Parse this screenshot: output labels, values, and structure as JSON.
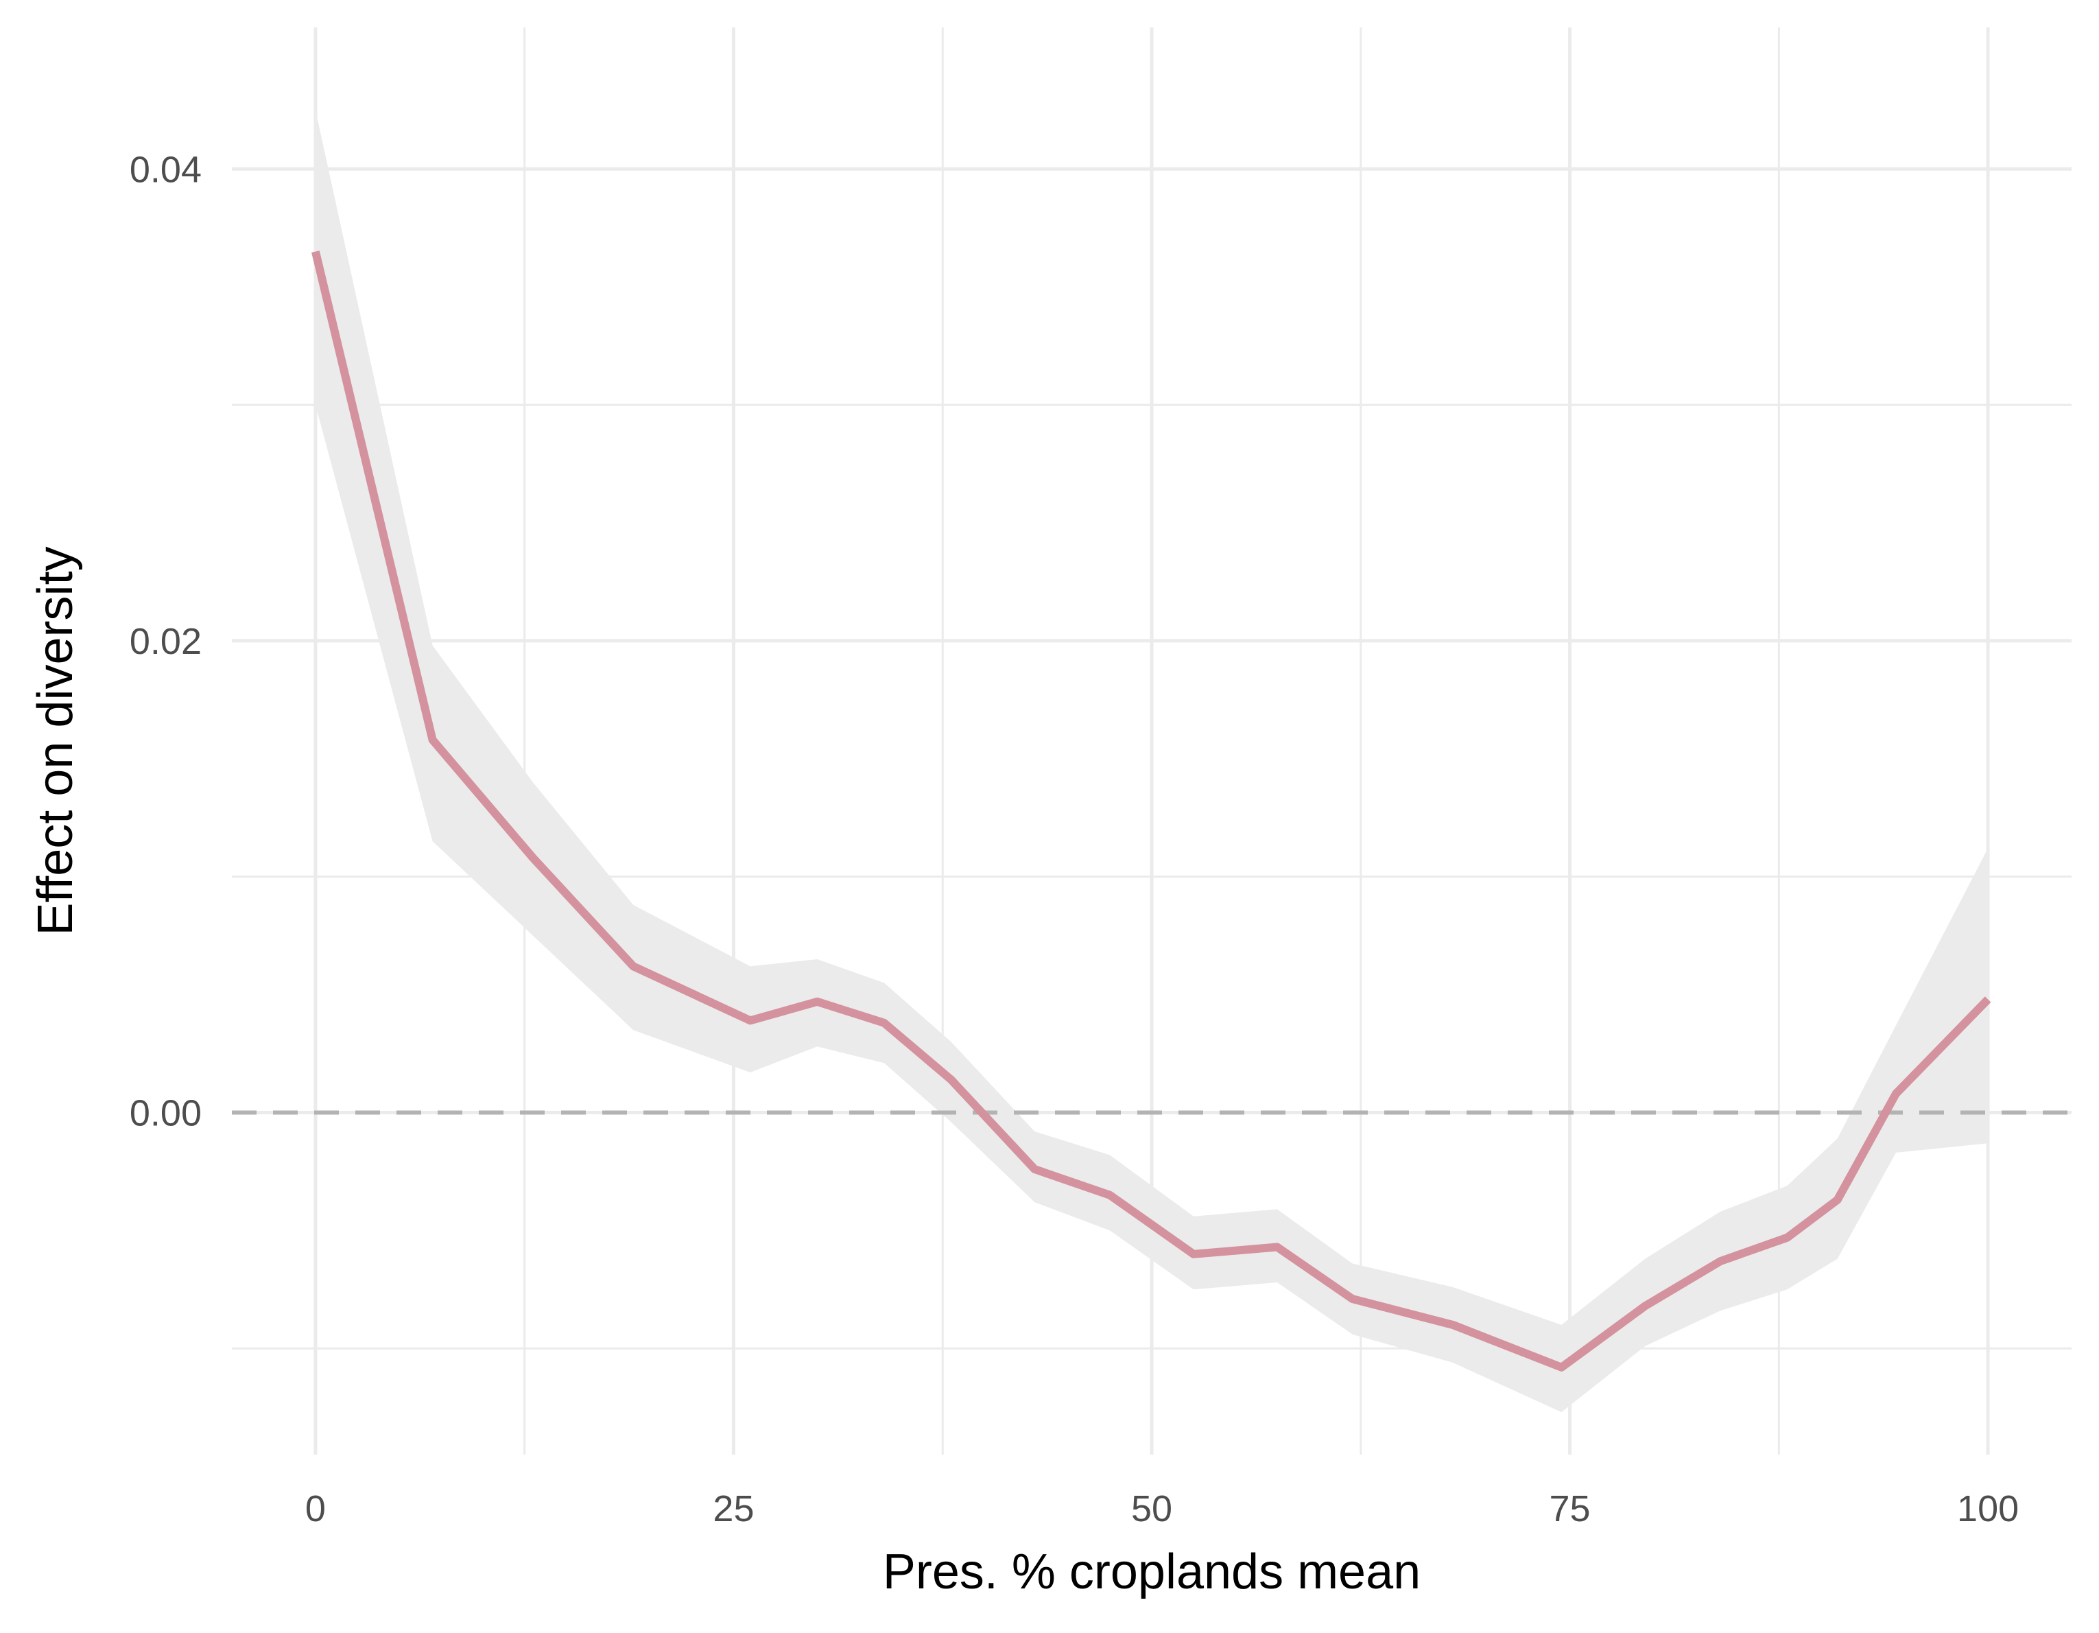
{
  "chart_data": {
    "type": "line",
    "xlabel": "Pres. % croplands mean",
    "ylabel": "Effect on diversity",
    "xlim": [
      -5,
      105
    ],
    "ylim": [
      -0.0145,
      0.046
    ],
    "x_ticks": [
      0,
      25,
      50,
      75,
      100
    ],
    "x_tick_labels": [
      "0",
      "25",
      "50",
      "75",
      "100"
    ],
    "y_ticks": [
      0.0,
      0.02,
      0.04
    ],
    "y_tick_labels": [
      "0.00",
      "0.02",
      "0.04"
    ],
    "grid": true,
    "reference_line": {
      "y": 0.0,
      "style": "dashed",
      "color": "#b3b3b3"
    },
    "series": [
      {
        "color": "#d4919e",
        "band_color": "#ebebeb",
        "x": [
          0,
          7,
          13,
          19,
          26,
          30,
          34,
          38,
          43,
          47.5,
          52.5,
          57.5,
          62,
          68,
          74.5,
          79.5,
          84,
          88,
          91,
          94.5,
          100
        ],
        "y": [
          0.0365,
          0.0158,
          0.0108,
          0.0062,
          0.0039,
          0.0047,
          0.0038,
          0.0014,
          -0.0024,
          -0.0035,
          -0.006,
          -0.0057,
          -0.0079,
          -0.009,
          -0.0108,
          -0.0082,
          -0.0063,
          -0.0053,
          -0.0037,
          0.0008,
          0.0048
        ],
        "lower": [
          0.03,
          0.0115,
          0.0075,
          0.0035,
          0.0017,
          0.0028,
          0.0021,
          -0.0004,
          -0.0038,
          -0.005,
          -0.0075,
          -0.0072,
          -0.0094,
          -0.0106,
          -0.0127,
          -0.0099,
          -0.0084,
          -0.0075,
          -0.0062,
          -0.0017,
          -0.0013
        ],
        "upper": [
          0.0425,
          0.0198,
          0.014,
          0.0088,
          0.0062,
          0.0065,
          0.0055,
          0.003,
          -0.0008,
          -0.0018,
          -0.0044,
          -0.0041,
          -0.0064,
          -0.0074,
          -0.009,
          -0.0062,
          -0.0042,
          -0.0031,
          -0.0011,
          0.0037,
          0.0112
        ]
      }
    ]
  }
}
